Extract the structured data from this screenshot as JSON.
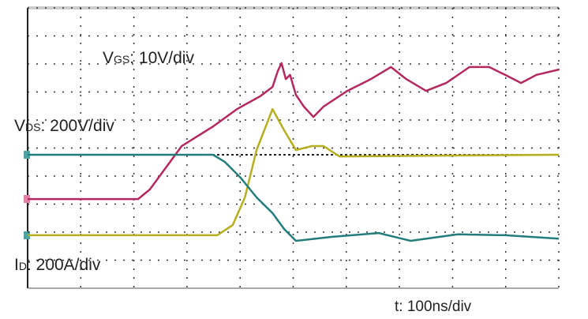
{
  "chart_data": {
    "type": "line",
    "xlim": [
      0,
      10
    ],
    "ylim": [
      0,
      10
    ],
    "grid": true,
    "annotations": [
      {
        "main": "V",
        "sub": "GS",
        "rest": ": 10V/div"
      },
      {
        "main": "V",
        "sub": "DS",
        "rest": ": 200V/div"
      },
      {
        "main": "I",
        "sub": "D",
        "rest": ": 200A/div"
      },
      {
        "main": "t: 100ns/div"
      }
    ],
    "series": [
      {
        "color": "#b3285e",
        "x": [
          0,
          2.08,
          2.3,
          2.9,
          3.49,
          3.94,
          4.38,
          4.61,
          4.71,
          4.78,
          4.86,
          4.94,
          5.05,
          5.2,
          5.38,
          5.57,
          6.02,
          6.46,
          6.84,
          7.13,
          7.5,
          7.88,
          8.32,
          8.69,
          8.99,
          9.29,
          9.58,
          10
        ],
        "values": [
          3.18,
          3.18,
          3.52,
          5.07,
          5.77,
          6.39,
          6.85,
          7.18,
          7.75,
          8.03,
          7.46,
          7.61,
          6.9,
          6.48,
          6.11,
          6.48,
          7.04,
          7.46,
          7.89,
          7.46,
          7.04,
          7.32,
          7.89,
          7.89,
          7.61,
          7.32,
          7.61,
          7.8
        ]
      },
      {
        "color": "#b5ae1e",
        "x": [
          0,
          3.57,
          3.86,
          4.09,
          4.31,
          4.61,
          4.83,
          5.05,
          5.35,
          5.57,
          5.87,
          10
        ],
        "values": [
          1.89,
          1.89,
          2.25,
          3.24,
          4.93,
          6.39,
          5.63,
          4.93,
          5.07,
          5.07,
          4.7,
          4.76
        ]
      },
      {
        "color": "#237c7c",
        "x": [
          0,
          3.49,
          3.71,
          4.01,
          4.31,
          4.61,
          4.83,
          5.05,
          5.72,
          6.61,
          7.21,
          8.1,
          8.99,
          10
        ],
        "values": [
          4.76,
          4.76,
          4.51,
          3.94,
          3.24,
          2.68,
          2.11,
          1.69,
          1.83,
          1.97,
          1.69,
          1.92,
          1.89,
          1.77
        ]
      }
    ]
  }
}
